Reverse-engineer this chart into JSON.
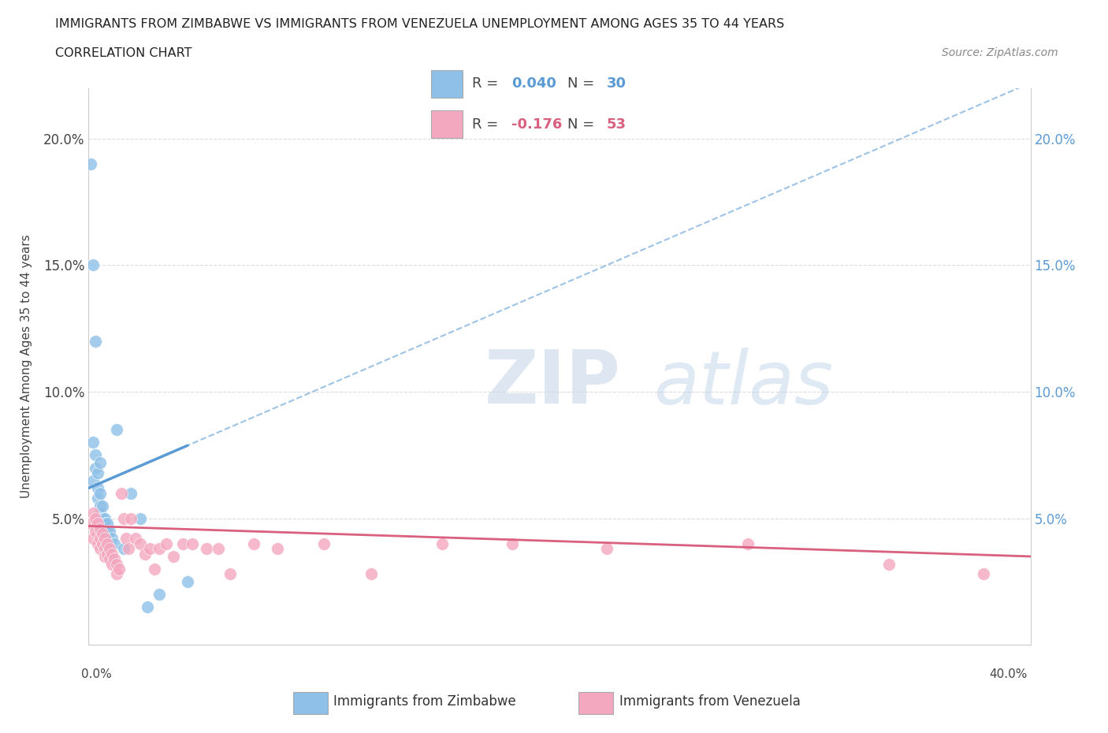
{
  "title_line1": "IMMIGRANTS FROM ZIMBABWE VS IMMIGRANTS FROM VENEZUELA UNEMPLOYMENT AMONG AGES 35 TO 44 YEARS",
  "title_line2": "CORRELATION CHART",
  "source": "Source: ZipAtlas.com",
  "ylabel": "Unemployment Among Ages 35 to 44 years",
  "xlim": [
    0.0,
    0.4
  ],
  "ylim": [
    0.0,
    0.22
  ],
  "yticks": [
    0.0,
    0.05,
    0.1,
    0.15,
    0.2
  ],
  "ytick_labels": [
    "",
    "5.0%",
    "10.0%",
    "15.0%",
    "20.0%"
  ],
  "right_ytick_labels": [
    "",
    "5.0%",
    "10.0%",
    "15.0%",
    "20.0%"
  ],
  "color_zimbabwe": "#8ec0e8",
  "color_venezuela": "#f4a8c0",
  "color_zimbabwe_line": "#5b9bd5",
  "color_venezuela_line": "#d9607e",
  "legend_r_zimbabwe": "0.040",
  "legend_n_zimbabwe": "30",
  "legend_r_venezuela": "-0.176",
  "legend_n_venezuela": "53",
  "zim_x": [
    0.001,
    0.002,
    0.002,
    0.002,
    0.003,
    0.003,
    0.003,
    0.004,
    0.004,
    0.004,
    0.005,
    0.005,
    0.005,
    0.005,
    0.006,
    0.006,
    0.007,
    0.007,
    0.008,
    0.008,
    0.009,
    0.01,
    0.011,
    0.012,
    0.015,
    0.018,
    0.022,
    0.025,
    0.03,
    0.042
  ],
  "zim_y": [
    0.19,
    0.15,
    0.08,
    0.065,
    0.12,
    0.075,
    0.07,
    0.068,
    0.062,
    0.058,
    0.072,
    0.06,
    0.055,
    0.052,
    0.055,
    0.05,
    0.05,
    0.048,
    0.048,
    0.045,
    0.045,
    0.042,
    0.04,
    0.085,
    0.038,
    0.06,
    0.05,
    0.015,
    0.02,
    0.025
  ],
  "ven_x": [
    0.001,
    0.002,
    0.002,
    0.003,
    0.003,
    0.004,
    0.004,
    0.005,
    0.005,
    0.005,
    0.006,
    0.006,
    0.007,
    0.007,
    0.007,
    0.008,
    0.008,
    0.009,
    0.009,
    0.01,
    0.01,
    0.011,
    0.012,
    0.012,
    0.013,
    0.014,
    0.015,
    0.016,
    0.017,
    0.018,
    0.02,
    0.022,
    0.024,
    0.026,
    0.028,
    0.03,
    0.033,
    0.036,
    0.04,
    0.044,
    0.05,
    0.055,
    0.06,
    0.07,
    0.08,
    0.1,
    0.12,
    0.15,
    0.18,
    0.22,
    0.28,
    0.34,
    0.38
  ],
  "ven_y": [
    0.048,
    0.052,
    0.042,
    0.05,
    0.045,
    0.048,
    0.04,
    0.046,
    0.042,
    0.038,
    0.044,
    0.04,
    0.042,
    0.038,
    0.035,
    0.04,
    0.036,
    0.038,
    0.034,
    0.036,
    0.032,
    0.034,
    0.032,
    0.028,
    0.03,
    0.06,
    0.05,
    0.042,
    0.038,
    0.05,
    0.042,
    0.04,
    0.036,
    0.038,
    0.03,
    0.038,
    0.04,
    0.035,
    0.04,
    0.04,
    0.038,
    0.038,
    0.028,
    0.04,
    0.038,
    0.04,
    0.028,
    0.04,
    0.04,
    0.038,
    0.04,
    0.032,
    0.028
  ]
}
